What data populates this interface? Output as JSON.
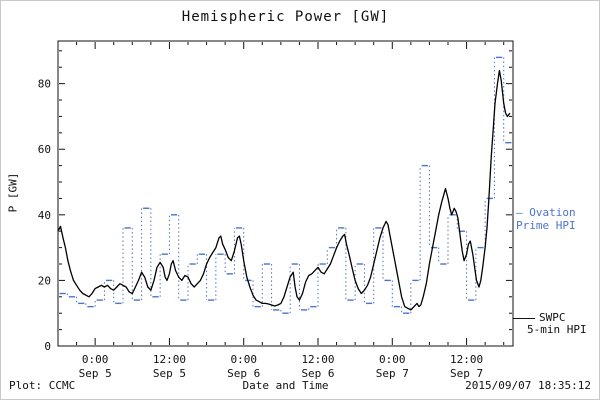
{
  "chart_data": {
    "type": "line",
    "title": "Hemispheric Power [GW]",
    "xlabel": "Date and Time",
    "ylabel": "P [GW]",
    "x_unit_hint": "hours, axis spans 2015-09-04 18:00 to 2015-09-07 19:30",
    "xlim": [
      0,
      73.5
    ],
    "ylim": [
      0,
      93
    ],
    "y_ticks": [
      0,
      20,
      40,
      60,
      80
    ],
    "x_ticks": [
      {
        "t": 6,
        "time": "0:00",
        "date": "Sep 5"
      },
      {
        "t": 18,
        "time": "12:00",
        "date": "Sep 5"
      },
      {
        "t": 30,
        "time": "0:00",
        "date": "Sep 6"
      },
      {
        "t": 42,
        "time": "12:00",
        "date": "Sep 6"
      },
      {
        "t": 54,
        "time": "0:00",
        "date": "Sep 7"
      },
      {
        "t": 66,
        "time": "12:00",
        "date": "Sep 7"
      }
    ],
    "series": [
      {
        "name": "Ovation Prime HPI",
        "color": "#4d74c9",
        "style": "step-dotted",
        "x": [
          0,
          1.5,
          3,
          4.5,
          6,
          7.5,
          9,
          10.5,
          12,
          13.5,
          15,
          16.5,
          18,
          19.5,
          21,
          22.5,
          24,
          25.5,
          27,
          28.5,
          30,
          31.5,
          33,
          34.5,
          36,
          37.5,
          39,
          40.5,
          42,
          43.5,
          45,
          46.5,
          48,
          49.5,
          51,
          52.5,
          54,
          55.5,
          57,
          58.5,
          60,
          61.5,
          63,
          64.5,
          66,
          67.5,
          69,
          70.5,
          72
        ],
        "y": [
          16,
          15,
          13,
          12,
          14,
          20,
          13,
          36,
          14,
          42,
          15,
          28,
          40,
          14,
          25,
          28,
          14,
          28,
          22,
          36,
          20,
          12,
          25,
          11,
          10,
          25,
          11,
          12,
          25,
          30,
          36,
          14,
          25,
          13,
          36,
          20,
          12,
          10,
          20,
          55,
          30,
          25,
          40,
          35,
          14,
          30,
          45,
          88,
          62
        ]
      },
      {
        "name": "SWPC 5-min HPI",
        "color": "#000000",
        "style": "line",
        "x": [
          0,
          0.4,
          0.8,
          1.2,
          1.6,
          2,
          2.5,
          3,
          3.5,
          4,
          4.5,
          5,
          5.5,
          6,
          6.5,
          7,
          7.5,
          8,
          8.5,
          9,
          9.5,
          10,
          10.5,
          11,
          11.5,
          12,
          12.5,
          13,
          13.5,
          14,
          14.5,
          15,
          15.5,
          16,
          16.5,
          17,
          17.3,
          17.6,
          18,
          18.3,
          18.6,
          19,
          19.5,
          20,
          20.5,
          21,
          21.5,
          22,
          22.5,
          23,
          23.5,
          24,
          24.5,
          25,
          25.5,
          26,
          26.3,
          26.6,
          27,
          27.5,
          28,
          28.5,
          29,
          29.3,
          29.6,
          30,
          30.5,
          31,
          31.5,
          32,
          32.5,
          33,
          33.5,
          34,
          34.5,
          35,
          35.5,
          36,
          36.5,
          37,
          37.5,
          38,
          38.3,
          38.6,
          39,
          39.5,
          40,
          40.5,
          41,
          41.5,
          42,
          42.5,
          43,
          43.5,
          44,
          44.5,
          45,
          45.5,
          46,
          46.3,
          46.6,
          47,
          47.5,
          48,
          48.5,
          49,
          49.5,
          50,
          50.5,
          51,
          51.5,
          52,
          52.5,
          53,
          53.3,
          53.6,
          54,
          54.5,
          55,
          55.5,
          56,
          56.5,
          57,
          57.5,
          58,
          58.3,
          58.6,
          59,
          59.5,
          60,
          60.5,
          61,
          61.5,
          62,
          62.3,
          62.6,
          63,
          63.3,
          63.6,
          64,
          64.3,
          64.6,
          65,
          65.3,
          65.6,
          66,
          66.3,
          66.6,
          67,
          67.3,
          67.6,
          68,
          68.3,
          68.6,
          69,
          69.3,
          69.6,
          70,
          70.3,
          70.6,
          71,
          71.3,
          71.6,
          72,
          72.3,
          72.6,
          73
        ],
        "y": [
          35,
          36.5,
          33,
          30,
          26,
          23,
          20,
          18.5,
          17,
          16,
          15.5,
          15,
          16,
          17.5,
          18,
          18.5,
          18,
          18.5,
          17.5,
          17,
          18,
          19,
          18.5,
          18,
          16.5,
          16,
          18,
          20,
          22.5,
          21,
          18,
          17,
          20,
          24,
          25.5,
          24,
          21,
          20,
          22,
          25,
          26,
          23,
          21,
          20,
          21.5,
          21,
          19,
          18,
          19,
          20,
          22,
          25,
          27,
          28.5,
          30,
          33,
          33.5,
          31,
          29.5,
          27,
          26,
          29,
          33,
          33.5,
          31,
          26,
          21,
          18,
          15.5,
          14,
          13.5,
          13,
          13,
          12.8,
          12.5,
          12.2,
          12.5,
          13,
          15,
          18,
          21,
          22.5,
          18,
          15,
          14,
          16,
          19.5,
          21.5,
          22,
          23,
          24,
          22.5,
          22,
          23.5,
          25,
          27.5,
          30,
          32,
          33.5,
          34,
          31,
          28,
          24,
          20,
          17.5,
          16,
          17,
          18.5,
          21,
          25,
          29,
          33,
          36,
          38,
          37,
          34,
          30,
          25,
          20,
          15,
          12,
          11.5,
          11,
          12,
          13,
          12,
          12.5,
          15,
          19,
          25,
          30,
          35,
          40,
          44,
          46,
          48,
          45,
          42,
          40,
          42,
          41,
          39,
          33,
          29,
          26,
          28,
          31,
          32,
          28,
          24,
          20,
          18,
          20,
          24,
          30,
          36,
          45,
          58,
          66,
          74,
          80,
          84,
          81,
          74,
          71,
          70,
          71
        ]
      }
    ],
    "legend_position": "right-outside",
    "grid": false
  },
  "legend": {
    "ovation_line1": "– Ovation",
    "ovation_line2": "Prime HPI",
    "swpc_line1": "SWPC",
    "swpc_line2": "5-min HPI"
  },
  "footer": {
    "left": "Plot: CCMC",
    "right": "2015/09/07 18:35:12"
  },
  "colors": {
    "ovation_blue": "#4d74c9",
    "swpc_black": "#000000",
    "background": "#ffffff"
  }
}
